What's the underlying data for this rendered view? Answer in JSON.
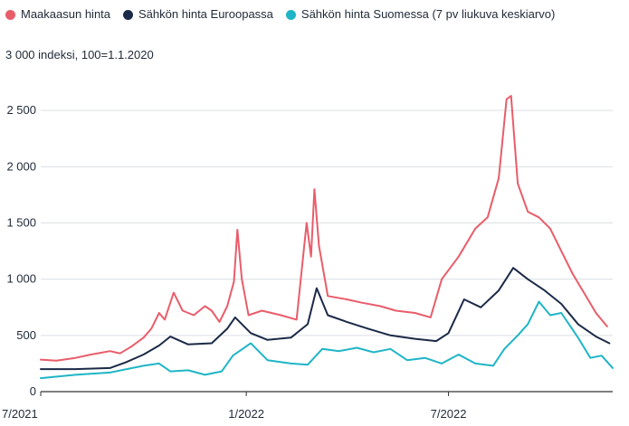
{
  "chart_data": {
    "type": "line",
    "title": "",
    "ylabel": "3 000 indeksi, 100=1.1.2020",
    "xlabel": "",
    "ylim": [
      0,
      3000
    ],
    "yticks": [
      "0",
      "500",
      "1 000",
      "1 500",
      "2 000",
      "2 500"
    ],
    "xticks": [
      {
        "label": "7/2021",
        "x": "2021-07-01"
      },
      {
        "label": "1/2022",
        "x": "2022-01-01"
      },
      {
        "label": "7/2022",
        "x": "2022-07-01"
      }
    ],
    "xlim": [
      "2021-07-01",
      "2022-11-25"
    ],
    "legend_position": "top-left",
    "grid": "horizontal",
    "series": [
      {
        "name": "Maakaasun hinta",
        "color": "#e85d6a",
        "points": [
          [
            "2021-07-01",
            285
          ],
          [
            "2021-07-15",
            275
          ],
          [
            "2021-08-01",
            300
          ],
          [
            "2021-08-15",
            330
          ],
          [
            "2021-09-01",
            360
          ],
          [
            "2021-09-10",
            340
          ],
          [
            "2021-09-20",
            400
          ],
          [
            "2021-10-01",
            480
          ],
          [
            "2021-10-08",
            560
          ],
          [
            "2021-10-15",
            700
          ],
          [
            "2021-10-20",
            640
          ],
          [
            "2021-10-28",
            880
          ],
          [
            "2021-11-05",
            720
          ],
          [
            "2021-11-15",
            680
          ],
          [
            "2021-11-25",
            760
          ],
          [
            "2021-12-01",
            720
          ],
          [
            "2021-12-08",
            620
          ],
          [
            "2021-12-15",
            760
          ],
          [
            "2021-12-21",
            980
          ],
          [
            "2021-12-24",
            1440
          ],
          [
            "2021-12-28",
            1000
          ],
          [
            "2022-01-03",
            680
          ],
          [
            "2022-01-15",
            720
          ],
          [
            "2022-02-01",
            680
          ],
          [
            "2022-02-15",
            640
          ],
          [
            "2022-02-24",
            1500
          ],
          [
            "2022-02-28",
            1200
          ],
          [
            "2022-03-03",
            1800
          ],
          [
            "2022-03-07",
            1300
          ],
          [
            "2022-03-15",
            850
          ],
          [
            "2022-04-01",
            820
          ],
          [
            "2022-04-15",
            790
          ],
          [
            "2022-05-01",
            760
          ],
          [
            "2022-05-15",
            720
          ],
          [
            "2022-06-01",
            700
          ],
          [
            "2022-06-15",
            660
          ],
          [
            "2022-06-25",
            1000
          ],
          [
            "2022-07-10",
            1200
          ],
          [
            "2022-07-25",
            1450
          ],
          [
            "2022-08-05",
            1550
          ],
          [
            "2022-08-15",
            1900
          ],
          [
            "2022-08-22",
            2600
          ],
          [
            "2022-08-26",
            2630
          ],
          [
            "2022-09-01",
            1850
          ],
          [
            "2022-09-10",
            1600
          ],
          [
            "2022-09-20",
            1550
          ],
          [
            "2022-09-30",
            1450
          ],
          [
            "2022-10-10",
            1250
          ],
          [
            "2022-10-20",
            1050
          ],
          [
            "2022-11-01",
            850
          ],
          [
            "2022-11-10",
            700
          ],
          [
            "2022-11-20",
            580
          ]
        ]
      },
      {
        "name": "Sähkön hinta Euroopassa",
        "color": "#1b2a47",
        "points": [
          [
            "2021-07-01",
            200
          ],
          [
            "2021-08-01",
            200
          ],
          [
            "2021-09-01",
            210
          ],
          [
            "2021-09-15",
            260
          ],
          [
            "2021-10-01",
            330
          ],
          [
            "2021-10-15",
            410
          ],
          [
            "2021-10-25",
            490
          ],
          [
            "2021-11-10",
            420
          ],
          [
            "2021-12-01",
            430
          ],
          [
            "2021-12-15",
            560
          ],
          [
            "2021-12-22",
            660
          ],
          [
            "2022-01-05",
            520
          ],
          [
            "2022-01-20",
            460
          ],
          [
            "2022-02-10",
            480
          ],
          [
            "2022-02-25",
            600
          ],
          [
            "2022-03-05",
            920
          ],
          [
            "2022-03-15",
            680
          ],
          [
            "2022-04-01",
            620
          ],
          [
            "2022-04-20",
            560
          ],
          [
            "2022-05-10",
            500
          ],
          [
            "2022-06-01",
            470
          ],
          [
            "2022-06-20",
            450
          ],
          [
            "2022-07-01",
            520
          ],
          [
            "2022-07-15",
            820
          ],
          [
            "2022-07-30",
            750
          ],
          [
            "2022-08-15",
            900
          ],
          [
            "2022-08-28",
            1100
          ],
          [
            "2022-09-10",
            1000
          ],
          [
            "2022-09-25",
            900
          ],
          [
            "2022-10-10",
            780
          ],
          [
            "2022-10-25",
            600
          ],
          [
            "2022-11-10",
            490
          ],
          [
            "2022-11-22",
            430
          ]
        ]
      },
      {
        "name": "Sähkön hinta Suomessa (7 pv liukuva keskiarvo)",
        "color": "#1fb5c6",
        "points": [
          [
            "2021-07-01",
            120
          ],
          [
            "2021-08-01",
            150
          ],
          [
            "2021-09-01",
            170
          ],
          [
            "2021-10-01",
            230
          ],
          [
            "2021-10-15",
            250
          ],
          [
            "2021-10-25",
            180
          ],
          [
            "2021-11-10",
            190
          ],
          [
            "2021-11-25",
            150
          ],
          [
            "2021-12-10",
            180
          ],
          [
            "2021-12-20",
            320
          ],
          [
            "2022-01-05",
            430
          ],
          [
            "2022-01-20",
            280
          ],
          [
            "2022-02-10",
            250
          ],
          [
            "2022-02-25",
            240
          ],
          [
            "2022-03-10",
            380
          ],
          [
            "2022-03-25",
            360
          ],
          [
            "2022-04-10",
            390
          ],
          [
            "2022-04-25",
            350
          ],
          [
            "2022-05-10",
            380
          ],
          [
            "2022-05-25",
            280
          ],
          [
            "2022-06-10",
            300
          ],
          [
            "2022-06-25",
            250
          ],
          [
            "2022-07-10",
            330
          ],
          [
            "2022-07-25",
            250
          ],
          [
            "2022-08-10",
            230
          ],
          [
            "2022-08-20",
            380
          ],
          [
            "2022-09-01",
            500
          ],
          [
            "2022-09-10",
            600
          ],
          [
            "2022-09-20",
            800
          ],
          [
            "2022-09-30",
            680
          ],
          [
            "2022-10-10",
            700
          ],
          [
            "2022-10-25",
            480
          ],
          [
            "2022-11-05",
            300
          ],
          [
            "2022-11-15",
            320
          ],
          [
            "2022-11-25",
            210
          ]
        ]
      }
    ]
  }
}
